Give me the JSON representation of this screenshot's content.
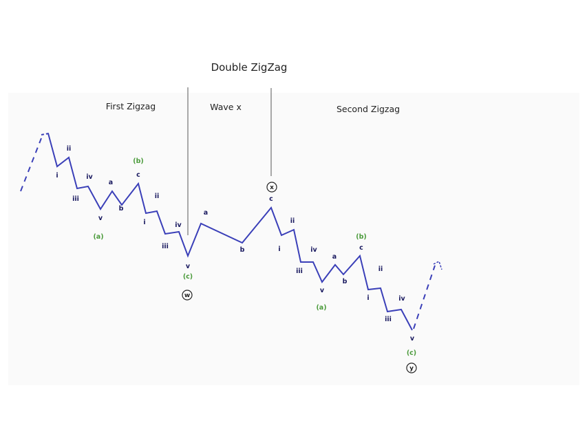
{
  "title": "Double ZigZag",
  "sections": {
    "first": "First Zigzag",
    "middle": "Wave x",
    "second": "Second Zigzag"
  },
  "colors": {
    "wave_line": "#3a3fb8",
    "minor_label": "#1a1a60",
    "intermediate_label": "#4a9a3a",
    "circle_label": "#222222",
    "divider": "#555555",
    "background": "#ffffff"
  },
  "labels": {
    "minor": [
      "i",
      "ii",
      "iii",
      "iv",
      "v",
      "a",
      "b",
      "c"
    ],
    "intermediate": [
      "(a)",
      "(b)",
      "(c)"
    ],
    "circled": [
      "w",
      "x",
      "y"
    ]
  }
}
